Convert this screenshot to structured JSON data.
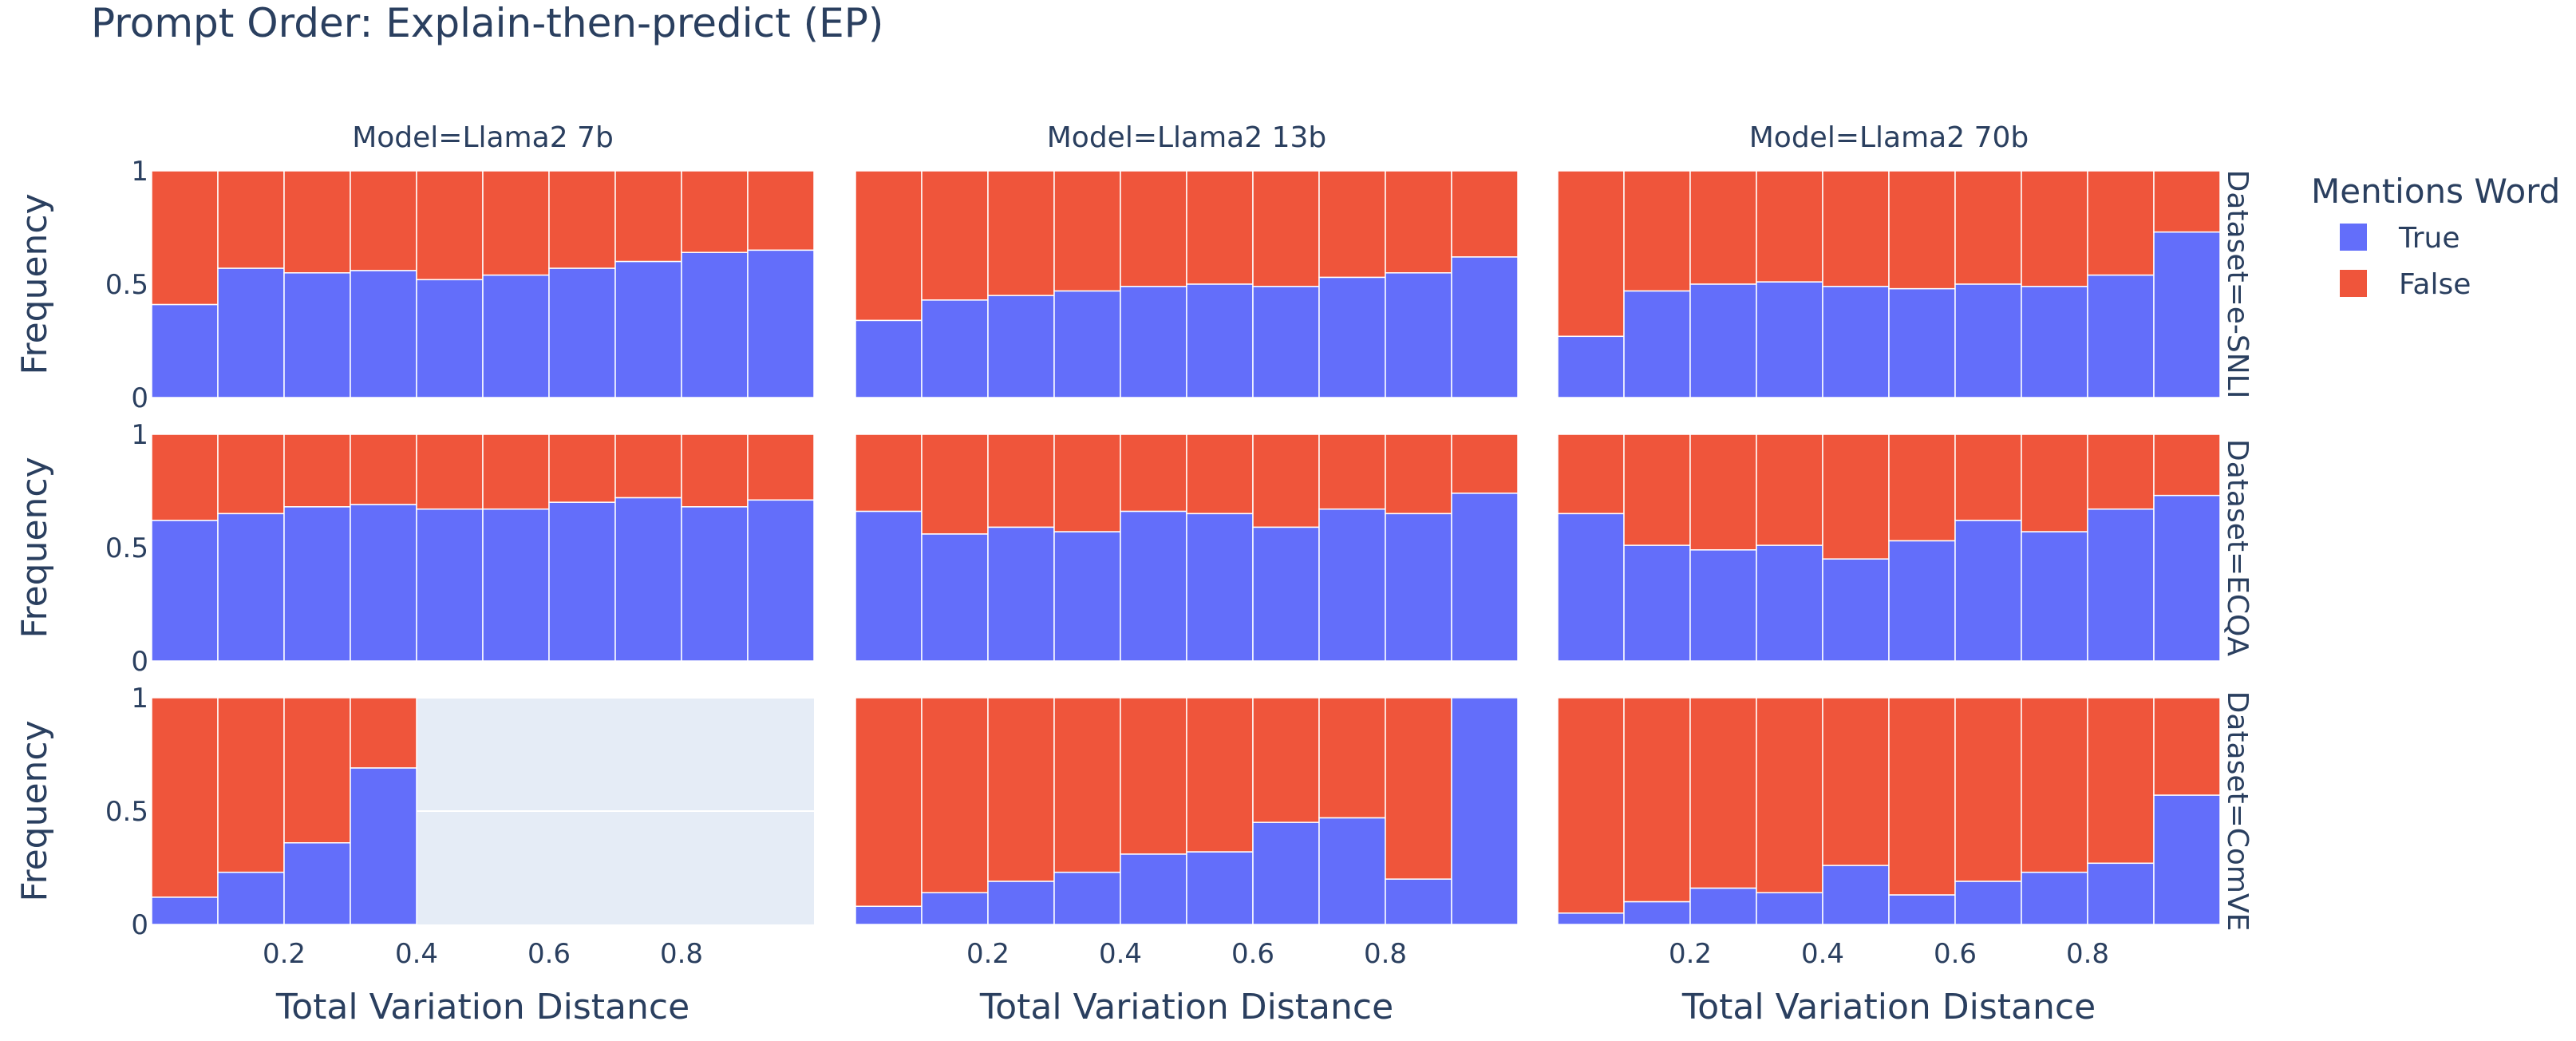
{
  "chart_data": {
    "type": "bar",
    "title": "Prompt Order: Explain-then-predict (EP)",
    "barmode": "stack-normalized",
    "xlabel": "Total Variation Distance",
    "ylabel": "Frequency",
    "xlim": [
      0,
      1
    ],
    "ylim": [
      0,
      1
    ],
    "bins": [
      0.05,
      0.15,
      0.25,
      0.35,
      0.45,
      0.55,
      0.65,
      0.75,
      0.85,
      0.95
    ],
    "xticks": [
      "0.2",
      "0.4",
      "0.6",
      "0.8"
    ],
    "xtick_values": [
      0.2,
      0.4,
      0.6,
      0.8
    ],
    "yticks": [
      "0",
      "0.5",
      "1"
    ],
    "ytick_values": [
      0,
      0.5,
      1
    ],
    "grid": true,
    "legend": {
      "title": "Mentions Word",
      "position": "right",
      "entries": [
        {
          "name": "True",
          "color": "#636efa"
        },
        {
          "name": "False",
          "color": "#ef553b"
        }
      ]
    },
    "columns": [
      "Model=Llama2 7b",
      "Model=Llama2 13b",
      "Model=Llama2 70b"
    ],
    "rows": [
      "Dataset=e-SNLI",
      "Dataset=ECQA",
      "Dataset=ComVE"
    ],
    "panels": [
      {
        "row": "Dataset=e-SNLI",
        "column": "Model=Llama2 7b",
        "true": [
          0.41,
          0.57,
          0.55,
          0.56,
          0.52,
          0.54,
          0.57,
          0.6,
          0.64,
          0.65
        ]
      },
      {
        "row": "Dataset=e-SNLI",
        "column": "Model=Llama2 13b",
        "true": [
          0.34,
          0.43,
          0.45,
          0.47,
          0.49,
          0.5,
          0.49,
          0.53,
          0.55,
          0.62
        ]
      },
      {
        "row": "Dataset=e-SNLI",
        "column": "Model=Llama2 70b",
        "true": [
          0.27,
          0.47,
          0.5,
          0.51,
          0.49,
          0.48,
          0.5,
          0.49,
          0.54,
          0.73
        ]
      },
      {
        "row": "Dataset=ECQA",
        "column": "Model=Llama2 7b",
        "true": [
          0.62,
          0.65,
          0.68,
          0.69,
          0.67,
          0.67,
          0.7,
          0.72,
          0.68,
          0.71
        ]
      },
      {
        "row": "Dataset=ECQA",
        "column": "Model=Llama2 13b",
        "true": [
          0.66,
          0.56,
          0.59,
          0.57,
          0.66,
          0.65,
          0.59,
          0.67,
          0.65,
          0.74
        ]
      },
      {
        "row": "Dataset=ECQA",
        "column": "Model=Llama2 70b",
        "true": [
          0.65,
          0.51,
          0.49,
          0.51,
          0.45,
          0.53,
          0.62,
          0.57,
          0.67,
          0.73
        ]
      },
      {
        "row": "Dataset=ComVE",
        "column": "Model=Llama2 7b",
        "true": [
          0.12,
          0.23,
          0.36,
          0.69,
          null,
          null,
          null,
          null,
          null,
          null
        ]
      },
      {
        "row": "Dataset=ComVE",
        "column": "Model=Llama2 13b",
        "true": [
          0.08,
          0.14,
          0.19,
          0.23,
          0.31,
          0.32,
          0.45,
          0.47,
          0.2,
          1.0
        ]
      },
      {
        "row": "Dataset=ComVE",
        "column": "Model=Llama2 70b",
        "true": [
          0.05,
          0.1,
          0.16,
          0.14,
          0.26,
          0.13,
          0.19,
          0.23,
          0.27,
          0.57
        ]
      }
    ]
  },
  "colors": {
    "true": "#636efa",
    "false": "#ef553b",
    "plot_bg": "#e5ecf6",
    "text": "#2a3f5f"
  }
}
